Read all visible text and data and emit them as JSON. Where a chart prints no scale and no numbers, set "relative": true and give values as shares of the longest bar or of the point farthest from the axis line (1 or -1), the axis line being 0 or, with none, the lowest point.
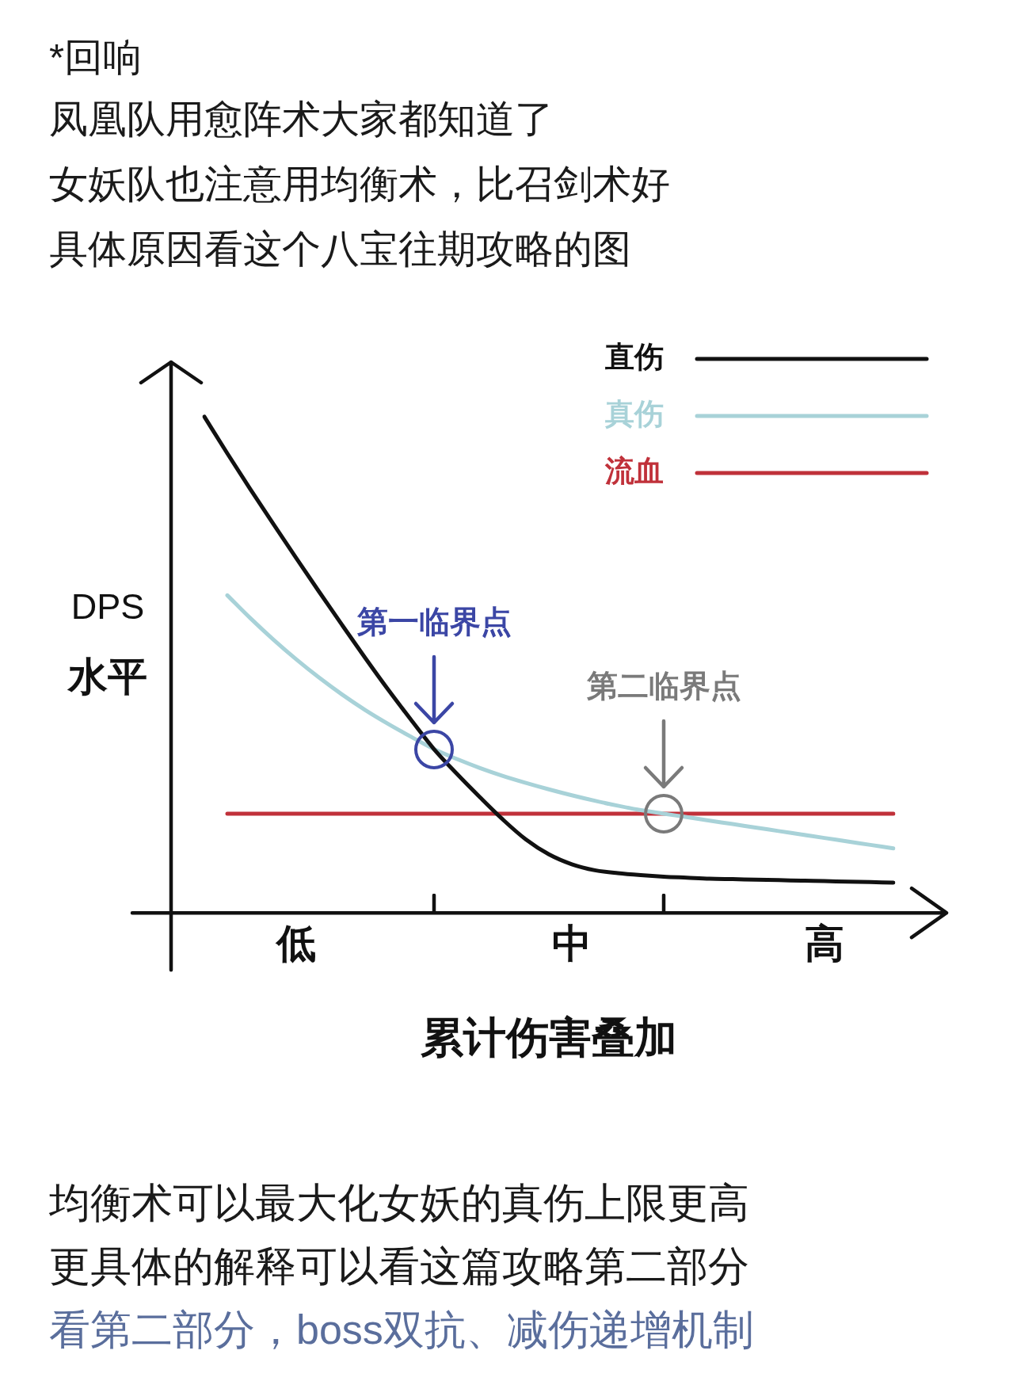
{
  "chart_data": {
    "type": "line",
    "title": "*回响",
    "xlabel": "累计伤害叠加",
    "ylabel": "DPS\n水平",
    "relative": true,
    "legend": "top right",
    "categories": [
      null,
      null,
      null,
      null,
      "低",
      null,
      null,
      null,
      null,
      null,
      null,
      null,
      null,
      null,
      null,
      null,
      "中",
      null,
      null,
      null,
      null,
      null,
      null,
      null,
      null,
      null,
      null,
      "高",
      null,
      null,
      null
    ],
    "series": [
      {
        "name": "直伤",
        "color": "#111111",
        "values": [
          1,
          0.926,
          0.854,
          0.784,
          0.715,
          0.647,
          0.58,
          0.514,
          0.45,
          0.389,
          0.33,
          0.28,
          0.233,
          0.188,
          0.148,
          0.118,
          0.098,
          0.086,
          0.08,
          0.076,
          0.073,
          0.071,
          0.069,
          0.068,
          0.067,
          0.066,
          0.065,
          0.064,
          0.063,
          0.062,
          0.061
        ]
      },
      {
        "name": "真伤",
        "color": "#a8d2d8",
        "values": [
          null,
          0.64,
          0.594,
          0.551,
          0.511,
          0.474,
          0.44,
          0.409,
          0.381,
          0.355,
          0.33,
          0.31,
          0.292,
          0.276,
          0.262,
          0.249,
          0.237,
          0.226,
          0.216,
          0.207,
          0.2,
          0.193,
          0.186,
          0.179,
          0.172,
          0.165,
          0.158,
          0.151,
          0.144,
          0.137,
          0.13
        ]
      },
      {
        "name": "流血",
        "color": "#c0313a",
        "values": [
          null,
          0.2,
          0.2,
          0.2,
          0.2,
          0.2,
          0.2,
          0.2,
          0.2,
          0.2,
          0.2,
          0.2,
          0.2,
          0.2,
          0.2,
          0.2,
          0.2,
          0.2,
          0.2,
          0.2,
          0.2,
          0.2,
          0.2,
          0.2,
          0.2,
          0.2,
          0.2,
          0.2,
          0.2,
          0.2,
          0.2
        ]
      }
    ],
    "annotations": [
      "凤凰队用愈阵术大家都知道了",
      "女妖队也注意用均衡术，比召剑术好",
      "具体原因看这个八宝往期攻略的图",
      "第一临界点",
      "第二临界点",
      "均衡术可以最大化女妖的真伤上限更高",
      "更具体的解释可以看这篇攻略第二部分",
      "看第二部分，boss双抗、减伤递增机制"
    ]
  }
}
